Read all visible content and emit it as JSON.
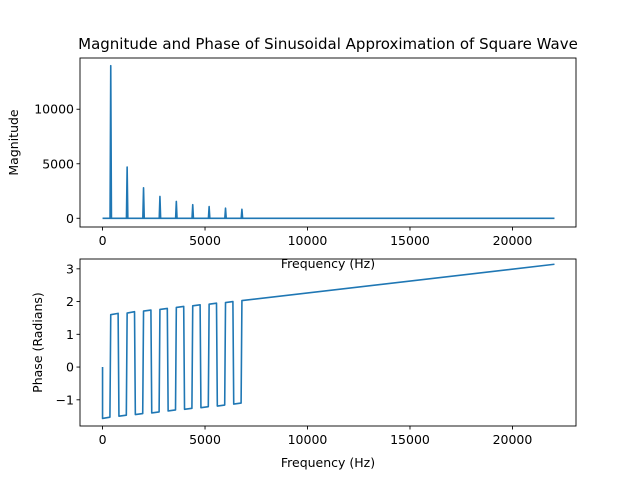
{
  "figure": {
    "title": "Magnitude and Phase of Sinusoidal Approximation of Square Wave"
  },
  "colors": {
    "series": "#1f77b4",
    "background": "#ffffff",
    "axes": "#000000"
  },
  "chart_data": [
    {
      "type": "line",
      "title": "Magnitude and Phase of Sinusoidal Approximation of Square Wave",
      "xlabel": "Frequency (Hz)",
      "ylabel": "Magnitude",
      "xlim": [
        -1100,
        23100
      ],
      "ylim": [
        -800,
        14700
      ],
      "grid": false,
      "x_ticks": [
        0,
        5000,
        10000,
        15000,
        20000
      ],
      "x_tick_labels": [
        "0",
        "5000",
        "10000",
        "15000",
        "20000"
      ],
      "y_ticks": [
        0,
        5000,
        10000
      ],
      "y_tick_labels": [
        "0",
        "5000",
        "10000"
      ],
      "baseline": {
        "x_start": 0,
        "x_end": 22050,
        "value": 0
      },
      "peaks": [
        {
          "x": 400,
          "value": 14000
        },
        {
          "x": 1200,
          "value": 4700
        },
        {
          "x": 2000,
          "value": 2800
        },
        {
          "x": 2800,
          "value": 2000
        },
        {
          "x": 3600,
          "value": 1550
        },
        {
          "x": 4400,
          "value": 1250
        },
        {
          "x": 5200,
          "value": 1070
        },
        {
          "x": 6000,
          "value": 930
        },
        {
          "x": 6800,
          "value": 820
        }
      ]
    },
    {
      "type": "line",
      "xlabel": "Frequency (Hz)",
      "ylabel": "Phase (Radians)",
      "xlim": [
        -1100,
        23100
      ],
      "ylim": [
        -1.8,
        3.3
      ],
      "grid": false,
      "x_ticks": [
        0,
        5000,
        10000,
        15000,
        20000
      ],
      "x_tick_labels": [
        "0",
        "5000",
        "10000",
        "15000",
        "20000"
      ],
      "y_ticks": [
        -1,
        0,
        1,
        2,
        3
      ],
      "y_tick_labels": [
        "−1",
        "0",
        "1",
        "2",
        "3"
      ],
      "points": [
        [
          0,
          0
        ],
        [
          0,
          -1.57
        ],
        [
          360,
          -1.53
        ],
        [
          400,
          1.6
        ],
        [
          760,
          1.64
        ],
        [
          800,
          -1.5
        ],
        [
          1160,
          -1.47
        ],
        [
          1200,
          1.65
        ],
        [
          1560,
          1.69
        ],
        [
          1600,
          -1.45
        ],
        [
          1960,
          -1.42
        ],
        [
          2000,
          1.71
        ],
        [
          2360,
          1.74
        ],
        [
          2400,
          -1.4
        ],
        [
          2760,
          -1.37
        ],
        [
          2800,
          1.76
        ],
        [
          3160,
          1.79
        ],
        [
          3200,
          -1.34
        ],
        [
          3560,
          -1.31
        ],
        [
          3600,
          1.82
        ],
        [
          3960,
          1.85
        ],
        [
          4000,
          -1.29
        ],
        [
          4360,
          -1.26
        ],
        [
          4400,
          1.87
        ],
        [
          4760,
          1.9
        ],
        [
          4800,
          -1.24
        ],
        [
          5160,
          -1.21
        ],
        [
          5200,
          1.92
        ],
        [
          5560,
          1.95
        ],
        [
          5600,
          -1.19
        ],
        [
          5960,
          -1.16
        ],
        [
          6000,
          1.97
        ],
        [
          6360,
          2.0
        ],
        [
          6400,
          -1.13
        ],
        [
          6760,
          -1.1
        ],
        [
          6800,
          2.03
        ],
        [
          22050,
          3.14
        ]
      ]
    }
  ]
}
